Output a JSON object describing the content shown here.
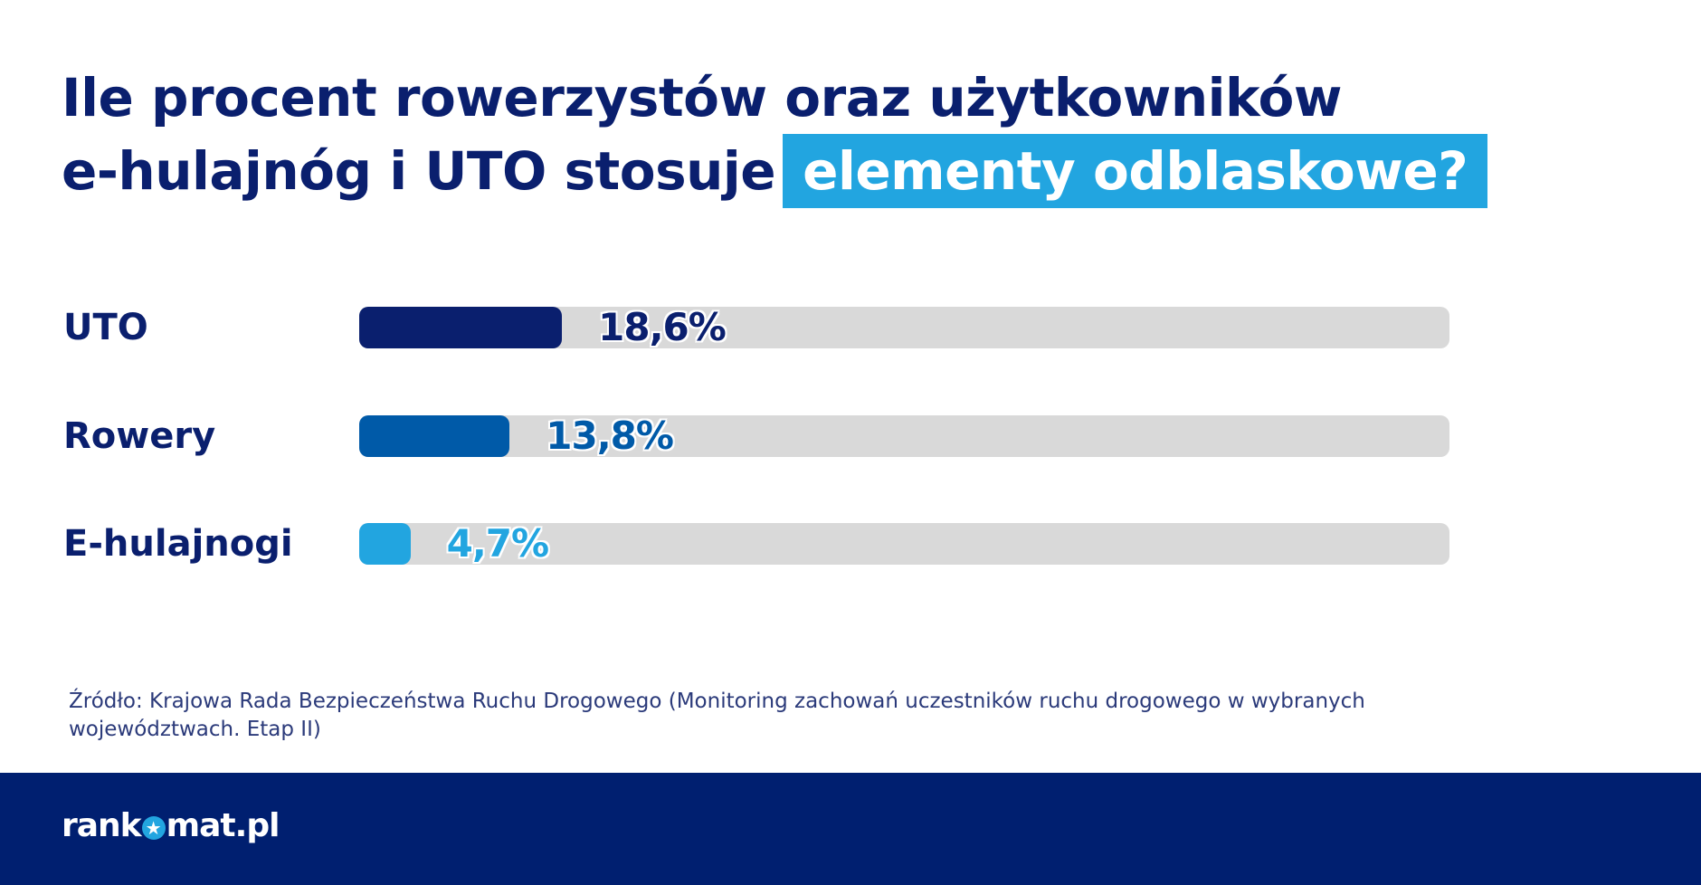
{
  "title": {
    "line1": "Ile procent rowerzystów oraz użytkowników",
    "line2_prefix": "e-hulajnóg i UTO stosuje",
    "highlight": "elementy odblaskowe?"
  },
  "chart_data": {
    "type": "bar",
    "orientation": "horizontal",
    "title": "Ile procent rowerzystów oraz użytkowników e-hulajnóg i UTO stosuje elementy odblaskowe?",
    "categories": [
      "UTO",
      "Rowery",
      "E-hulajnogi"
    ],
    "values": [
      18.6,
      13.8,
      4.7
    ],
    "value_labels": [
      "18,6%",
      "13,8%",
      "4,7%"
    ],
    "unit": "%",
    "xlim": [
      0,
      100
    ],
    "colors": [
      "#0a1f6e",
      "#005aa8",
      "#22a5e0"
    ],
    "track_color": "#d9d9d9",
    "grid": false
  },
  "source": "Źródło: Krajowa Rada Bezpieczeństwa Ruchu Drogowego (Monitoring zachowań uczestników ruchu drogowego w wybranych województwach. Etap II)",
  "footer": {
    "logo_left": "rank",
    "logo_right": "mat.pl",
    "logo_text": "rankomat.pl",
    "background": "#001f70"
  }
}
